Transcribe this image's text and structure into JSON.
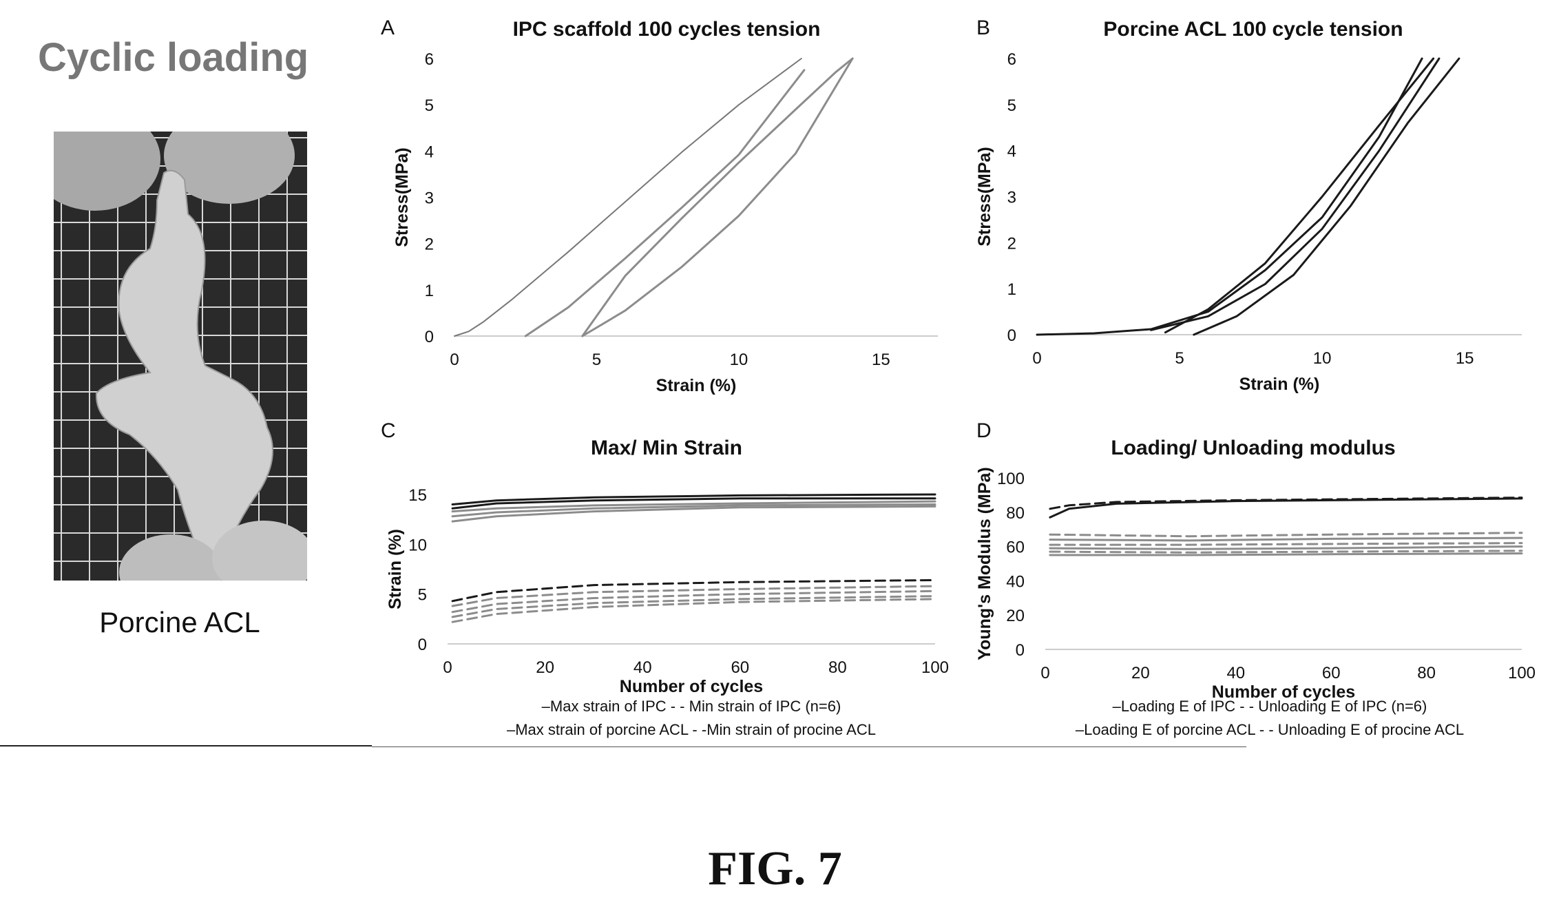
{
  "page_title": "Cyclic loading",
  "photo_caption": "Porcine ACL",
  "figure_label": "FIG. 7",
  "colors": {
    "ipc": "#8c8c8c",
    "acl": "#1a1a1a",
    "axis": "#bbbbbb"
  },
  "chart_data": [
    {
      "panel": "A",
      "type": "line",
      "title": "IPC scaffold 100 cycles tension",
      "xlabel": "Strain (%)",
      "ylabel": "Stress(MPa)",
      "xlim": [
        0,
        17
      ],
      "ylim": [
        0,
        6
      ],
      "xticks": [
        "0",
        "5",
        "10",
        "15"
      ],
      "yticks": [
        "0",
        "1",
        "2",
        "3",
        "4",
        "5",
        "6"
      ],
      "series": [
        {
          "x": [
            0,
            0.5,
            1,
            2,
            4,
            6,
            8,
            10,
            12.2
          ],
          "y": [
            0,
            0.1,
            0.3,
            0.78,
            1.82,
            2.9,
            3.98,
            5.0,
            6.0
          ]
        },
        {
          "x": [
            2.5,
            4,
            6,
            8,
            10,
            12.3
          ],
          "y": [
            0,
            0.62,
            1.68,
            2.78,
            3.92,
            5.75
          ]
        },
        {
          "x": [
            4.5,
            6,
            8,
            10,
            12,
            14
          ],
          "y": [
            0,
            0.55,
            1.5,
            2.6,
            3.95,
            6.0
          ]
        },
        {
          "x": [
            4.5,
            6,
            8,
            10,
            12,
            13.4,
            14
          ],
          "y": [
            0,
            1.3,
            2.55,
            3.75,
            4.9,
            5.7,
            6.0
          ]
        }
      ]
    },
    {
      "panel": "B",
      "type": "line",
      "title": "Porcine ACL 100 cycle tension",
      "xlabel": "Strain (%)",
      "ylabel": "Stress(MPa)",
      "xlim": [
        0,
        17
      ],
      "ylim": [
        0,
        6
      ],
      "xticks": [
        "0",
        "5",
        "10",
        "15"
      ],
      "yticks": [
        "0",
        "1",
        "2",
        "3",
        "4",
        "5",
        "6"
      ],
      "series": [
        {
          "x": [
            0,
            2,
            4,
            6,
            8,
            10,
            12,
            13.5
          ],
          "y": [
            0,
            0.03,
            0.12,
            0.5,
            1.4,
            2.55,
            4.3,
            6.0
          ]
        },
        {
          "x": [
            4,
            6,
            8,
            10,
            12,
            14.1
          ],
          "y": [
            0.1,
            0.4,
            1.1,
            2.3,
            4.0,
            6.0
          ]
        },
        {
          "x": [
            5.5,
            7,
            9,
            11,
            13,
            14.8
          ],
          "y": [
            0,
            0.4,
            1.3,
            2.8,
            4.6,
            6.0
          ]
        },
        {
          "x": [
            4.5,
            6,
            8,
            10,
            12,
            13.9
          ],
          "y": [
            0.05,
            0.55,
            1.55,
            3.0,
            4.55,
            6.0
          ]
        }
      ]
    },
    {
      "panel": "C",
      "type": "line",
      "title": "Max/ Min Strain",
      "xlabel": "Number of cycles",
      "ylabel": "Strain (%)",
      "xlim": [
        0,
        100
      ],
      "ylim": [
        0,
        15
      ],
      "xticks": [
        "0",
        "20",
        "40",
        "60",
        "80",
        "100"
      ],
      "yticks": [
        "0",
        "5",
        "10",
        "15"
      ],
      "legend": [
        "–Max strain of IPC - - Min strain of IPC (n=6)",
        "–Max strain of porcine ACL - -Min strain of procine ACL"
      ],
      "series": [
        {
          "x": [
            1,
            10,
            30,
            60,
            100
          ],
          "y": [
            14.0,
            14.4,
            14.7,
            14.9,
            15.0
          ],
          "style": "solid",
          "color": "#1a1a1a"
        },
        {
          "x": [
            1,
            10,
            30,
            60,
            100
          ],
          "y": [
            13.6,
            14.1,
            14.4,
            14.6,
            14.6
          ],
          "style": "solid",
          "color": "#1a1a1a"
        },
        {
          "x": [
            1,
            10,
            30,
            60,
            100
          ],
          "y": [
            13.3,
            13.6,
            13.9,
            14.1,
            14.3
          ],
          "style": "solid",
          "color": "#8c8c8c"
        },
        {
          "x": [
            1,
            10,
            30,
            60,
            100
          ],
          "y": [
            12.8,
            13.2,
            13.6,
            13.9,
            14.0
          ],
          "style": "solid",
          "color": "#8c8c8c"
        },
        {
          "x": [
            1,
            10,
            30,
            60,
            100
          ],
          "y": [
            12.3,
            12.8,
            13.3,
            13.7,
            13.8
          ],
          "style": "solid",
          "color": "#8c8c8c"
        },
        {
          "x": [
            1,
            10,
            30,
            60,
            100
          ],
          "y": [
            4.3,
            5.2,
            5.9,
            6.2,
            6.4
          ],
          "style": "dashed",
          "color": "#1a1a1a"
        },
        {
          "x": [
            1,
            10,
            30,
            60,
            100
          ],
          "y": [
            3.8,
            4.6,
            5.2,
            5.5,
            5.8
          ],
          "style": "dashed",
          "color": "#8c8c8c"
        },
        {
          "x": [
            1,
            10,
            30,
            60,
            100
          ],
          "y": [
            3.2,
            4.0,
            4.6,
            5.0,
            5.3
          ],
          "style": "dashed",
          "color": "#8c8c8c"
        },
        {
          "x": [
            1,
            10,
            30,
            60,
            100
          ],
          "y": [
            2.7,
            3.5,
            4.1,
            4.5,
            4.8
          ],
          "style": "dashed",
          "color": "#8c8c8c"
        },
        {
          "x": [
            1,
            10,
            30,
            60,
            100
          ],
          "y": [
            2.2,
            3.0,
            3.7,
            4.2,
            4.5
          ],
          "style": "dashed",
          "color": "#8c8c8c"
        }
      ]
    },
    {
      "panel": "D",
      "type": "line",
      "title": "Loading/ Unloading modulus",
      "xlabel": "Number of cycles",
      "ylabel": "Young's Modulus (MPa)",
      "xlim": [
        0,
        100
      ],
      "ylim": [
        0,
        100
      ],
      "xticks": [
        "0",
        "20",
        "40",
        "60",
        "80",
        "100"
      ],
      "yticks": [
        "0",
        "20",
        "40",
        "60",
        "80",
        "100"
      ],
      "legend": [
        "–Loading E of IPC - - Unloading E of IPC (n=6)",
        "–Loading E of porcine ACL - - Unloading E of procine ACL"
      ],
      "series": [
        {
          "x": [
            1,
            5,
            15,
            40,
            100
          ],
          "y": [
            77,
            82,
            85,
            86.5,
            88
          ],
          "style": "solid",
          "color": "#1a1a1a"
        },
        {
          "x": [
            1,
            5,
            15,
            40,
            100
          ],
          "y": [
            82,
            84,
            86,
            87,
            88.5
          ],
          "style": "dashed",
          "color": "#1a1a1a"
        },
        {
          "x": [
            1,
            30,
            60,
            100
          ],
          "y": [
            67,
            66,
            67,
            68
          ],
          "style": "dashed",
          "color": "#8c8c8c"
        },
        {
          "x": [
            1,
            30,
            60,
            100
          ],
          "y": [
            64,
            63.5,
            64.5,
            65
          ],
          "style": "solid",
          "color": "#8c8c8c"
        },
        {
          "x": [
            1,
            30,
            60,
            100
          ],
          "y": [
            61,
            61,
            61.5,
            62
          ],
          "style": "dashed",
          "color": "#8c8c8c"
        },
        {
          "x": [
            1,
            30,
            60,
            100
          ],
          "y": [
            59,
            58.5,
            59,
            60
          ],
          "style": "solid",
          "color": "#8c8c8c"
        },
        {
          "x": [
            1,
            30,
            60,
            100
          ],
          "y": [
            57,
            56.5,
            57,
            57.5
          ],
          "style": "dashed",
          "color": "#8c8c8c"
        },
        {
          "x": [
            1,
            30,
            60,
            100
          ],
          "y": [
            55,
            55,
            55.5,
            56
          ],
          "style": "solid",
          "color": "#8c8c8c"
        }
      ]
    }
  ]
}
